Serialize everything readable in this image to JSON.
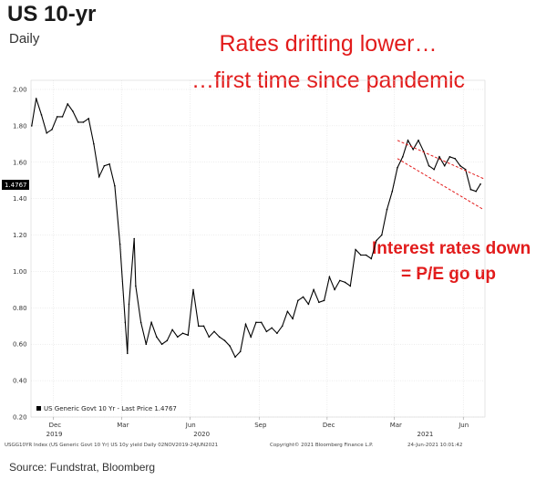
{
  "title": "US 10-yr",
  "subtitle": "Daily",
  "headline": [
    "Rates drifting lower…",
    "…first time since pandemic"
  ],
  "annotation": [
    "Interest rates down",
    "= P/E go up"
  ],
  "footer": "Source: Fundstrat, Bloomberg",
  "chart_meta": {
    "legend": "US Generic Govt 10 Yr - Last Price 1.4767",
    "last_price_label": "1.4767",
    "index_line": "USGG10YR Index (US Generic Govt 10 Yr) US 10y yield Daily 02NOV2019-24JUN2021",
    "copyright": "Copyright© 2021 Bloomberg Finance L.P.",
    "timestamp": "24-Jun-2021 10:01:42"
  },
  "colors": {
    "annotation": "#e21b1b",
    "line": "#000000",
    "label_bg": "#000000"
  },
  "chart_data": {
    "type": "line",
    "title": "US 10-yr",
    "subtitle": "Daily",
    "ylim": [
      0.2,
      2.05
    ],
    "yticks": [
      "2.00",
      "1.80",
      "1.60",
      "1.40",
      "1.20",
      "1.00",
      "0.80",
      "0.60",
      "0.40",
      "0.20"
    ],
    "xlim": [
      "2019-11-01",
      "2021-06-30"
    ],
    "xticks": [
      {
        "label": "Dec",
        "date": "2019-12-01"
      },
      {
        "label": "Mar",
        "date": "2020-03-01"
      },
      {
        "label": "Jun",
        "date": "2020-06-01"
      },
      {
        "label": "Sep",
        "date": "2020-09-01"
      },
      {
        "label": "Dec",
        "date": "2020-12-01"
      },
      {
        "label": "Mar",
        "date": "2021-03-01"
      },
      {
        "label": "Jun",
        "date": "2021-06-01"
      }
    ],
    "year_labels": [
      {
        "label": "2019",
        "date": "2019-12-01"
      },
      {
        "label": "2020",
        "date": "2020-06-15"
      },
      {
        "label": "2021",
        "date": "2021-04-10"
      }
    ],
    "series": [
      {
        "name": "US Generic Govt 10 Yr - Last Price",
        "points": [
          [
            "2019-11-02",
            1.8
          ],
          [
            "2019-11-08",
            1.95
          ],
          [
            "2019-11-15",
            1.86
          ],
          [
            "2019-11-22",
            1.76
          ],
          [
            "2019-11-29",
            1.78
          ],
          [
            "2019-12-06",
            1.85
          ],
          [
            "2019-12-13",
            1.85
          ],
          [
            "2019-12-20",
            1.92
          ],
          [
            "2019-12-27",
            1.88
          ],
          [
            "2020-01-03",
            1.82
          ],
          [
            "2020-01-10",
            1.82
          ],
          [
            "2020-01-17",
            1.84
          ],
          [
            "2020-01-24",
            1.7
          ],
          [
            "2020-01-31",
            1.52
          ],
          [
            "2020-02-07",
            1.58
          ],
          [
            "2020-02-14",
            1.59
          ],
          [
            "2020-02-21",
            1.47
          ],
          [
            "2020-02-28",
            1.15
          ],
          [
            "2020-03-06",
            0.72
          ],
          [
            "2020-03-09",
            0.55
          ],
          [
            "2020-03-11",
            0.82
          ],
          [
            "2020-03-18",
            1.18
          ],
          [
            "2020-03-20",
            0.92
          ],
          [
            "2020-03-27",
            0.72
          ],
          [
            "2020-04-03",
            0.6
          ],
          [
            "2020-04-10",
            0.72
          ],
          [
            "2020-04-17",
            0.64
          ],
          [
            "2020-04-24",
            0.6
          ],
          [
            "2020-05-01",
            0.62
          ],
          [
            "2020-05-08",
            0.68
          ],
          [
            "2020-05-15",
            0.64
          ],
          [
            "2020-05-22",
            0.66
          ],
          [
            "2020-05-29",
            0.65
          ],
          [
            "2020-06-05",
            0.9
          ],
          [
            "2020-06-12",
            0.7
          ],
          [
            "2020-06-19",
            0.7
          ],
          [
            "2020-06-26",
            0.64
          ],
          [
            "2020-07-03",
            0.67
          ],
          [
            "2020-07-10",
            0.64
          ],
          [
            "2020-07-17",
            0.62
          ],
          [
            "2020-07-24",
            0.59
          ],
          [
            "2020-07-31",
            0.53
          ],
          [
            "2020-08-07",
            0.56
          ],
          [
            "2020-08-14",
            0.71
          ],
          [
            "2020-08-21",
            0.64
          ],
          [
            "2020-08-28",
            0.72
          ],
          [
            "2020-09-04",
            0.72
          ],
          [
            "2020-09-11",
            0.67
          ],
          [
            "2020-09-18",
            0.69
          ],
          [
            "2020-09-25",
            0.66
          ],
          [
            "2020-10-02",
            0.7
          ],
          [
            "2020-10-09",
            0.78
          ],
          [
            "2020-10-16",
            0.74
          ],
          [
            "2020-10-23",
            0.84
          ],
          [
            "2020-10-30",
            0.86
          ],
          [
            "2020-11-06",
            0.82
          ],
          [
            "2020-11-13",
            0.9
          ],
          [
            "2020-11-20",
            0.83
          ],
          [
            "2020-11-27",
            0.84
          ],
          [
            "2020-12-04",
            0.97
          ],
          [
            "2020-12-11",
            0.9
          ],
          [
            "2020-12-18",
            0.95
          ],
          [
            "2020-12-25",
            0.94
          ],
          [
            "2021-01-01",
            0.92
          ],
          [
            "2021-01-08",
            1.12
          ],
          [
            "2021-01-15",
            1.09
          ],
          [
            "2021-01-22",
            1.09
          ],
          [
            "2021-01-29",
            1.07
          ],
          [
            "2021-02-05",
            1.17
          ],
          [
            "2021-02-12",
            1.2
          ],
          [
            "2021-02-19",
            1.34
          ],
          [
            "2021-02-26",
            1.44
          ],
          [
            "2021-03-05",
            1.57
          ],
          [
            "2021-03-12",
            1.63
          ],
          [
            "2021-03-19",
            1.72
          ],
          [
            "2021-03-26",
            1.67
          ],
          [
            "2021-04-02",
            1.72
          ],
          [
            "2021-04-09",
            1.66
          ],
          [
            "2021-04-16",
            1.58
          ],
          [
            "2021-04-23",
            1.56
          ],
          [
            "2021-04-30",
            1.63
          ],
          [
            "2021-05-07",
            1.58
          ],
          [
            "2021-05-14",
            1.63
          ],
          [
            "2021-05-21",
            1.62
          ],
          [
            "2021-05-28",
            1.58
          ],
          [
            "2021-06-04",
            1.56
          ],
          [
            "2021-06-11",
            1.45
          ],
          [
            "2021-06-18",
            1.44
          ],
          [
            "2021-06-24",
            1.48
          ]
        ]
      }
    ],
    "trend_channel": {
      "upper": [
        [
          "2021-03-05",
          1.72
        ],
        [
          "2021-06-28",
          1.51
        ]
      ],
      "lower": [
        [
          "2021-03-05",
          1.62
        ],
        [
          "2021-06-28",
          1.34
        ]
      ]
    },
    "last_price": 1.4767,
    "grid": true,
    "legend": "bottom-left"
  }
}
